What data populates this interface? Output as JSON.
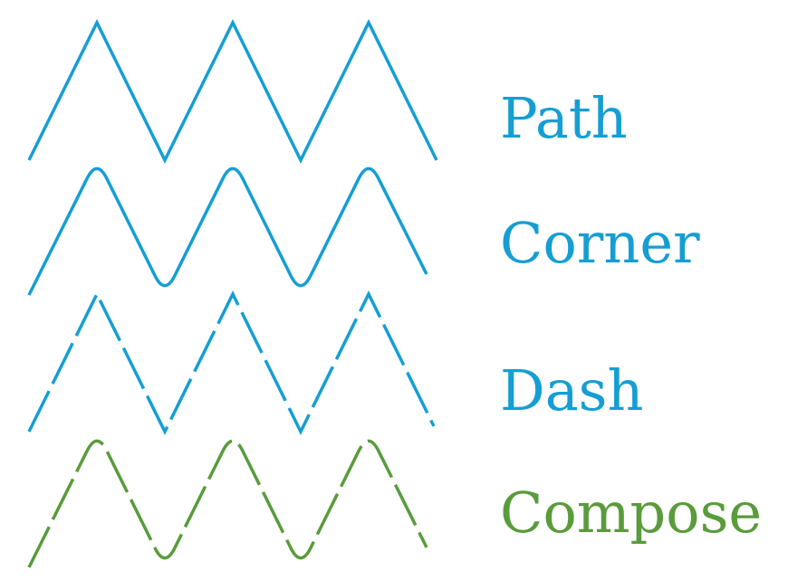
{
  "colors": {
    "blue": "#159ed3",
    "green": "#5a9b3c",
    "background": "#ffffff"
  },
  "effects": [
    {
      "label": "Path",
      "style": "sharp",
      "line": "solid",
      "color": "blue"
    },
    {
      "label": "Corner",
      "style": "rounded",
      "line": "solid",
      "color": "blue"
    },
    {
      "label": "Dash",
      "style": "sharp",
      "line": "dashed",
      "color": "blue"
    },
    {
      "label": "Compose",
      "style": "rounded",
      "line": "dashed",
      "color": "green"
    }
  ]
}
